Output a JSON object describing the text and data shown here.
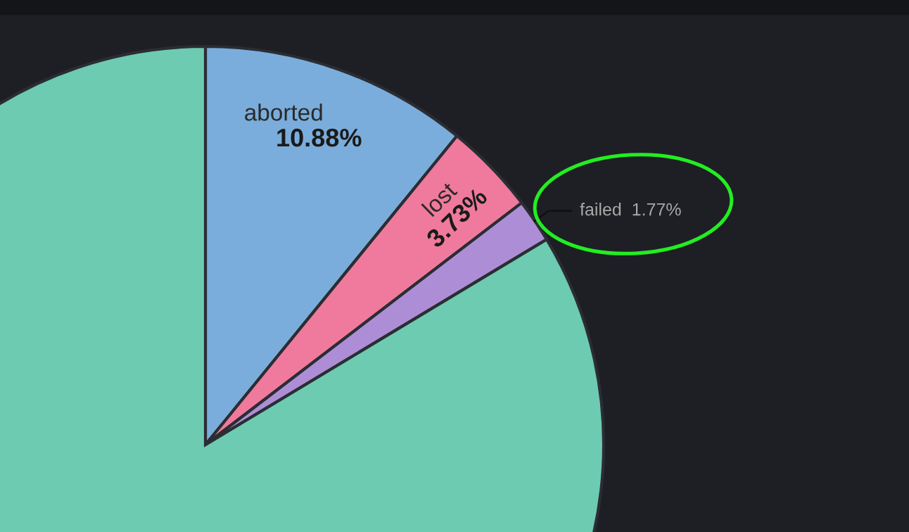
{
  "chart_data": {
    "type": "pie",
    "categories": [
      "aborted",
      "lost",
      "failed",
      null
    ],
    "values": [
      10.88,
      3.73,
      1.77,
      83.62
    ],
    "colors": [
      "#7aaddb",
      "#ef7a9d",
      "#ad8ed6",
      "#6dcbb2"
    ],
    "value_labels": [
      "10.88%",
      "3.73%",
      "1.77%",
      null
    ]
  }
}
